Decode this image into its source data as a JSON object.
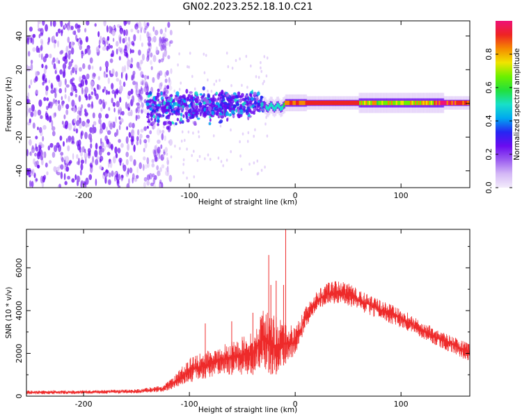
{
  "title": "GN02.2023.252.18.10.C21",
  "chart_data": [
    {
      "type": "heatmap",
      "name": "spectrogram",
      "xlabel": "Height of straight line (km)",
      "ylabel": "Frequency (Hz)",
      "xlim": [
        -254,
        165
      ],
      "ylim": [
        -50,
        49
      ],
      "xticks": [
        -200,
        -100,
        0,
        100
      ],
      "xtick_labels": [
        "-200",
        "-100",
        "0",
        "100"
      ],
      "yticks": [
        -40,
        -20,
        0,
        20,
        40
      ],
      "ytick_labels": [
        "-40",
        "-20",
        "0",
        "20",
        "40"
      ],
      "colorbar": {
        "label": "Normalized spectral amplitude",
        "range": [
          0,
          1
        ],
        "ticks": [
          0.0,
          0.2,
          0.4,
          0.6,
          0.8
        ],
        "tick_labels": [
          "0.0",
          "0.2",
          "0.4",
          "0.6",
          "0.8"
        ],
        "colors": [
          "#f3ecfb",
          "#d4b8f6",
          "#9b5cf0",
          "#6a0bf0",
          "#2626f2",
          "#00a8f0",
          "#18e0c8",
          "#22e03c",
          "#6cf000",
          "#f0e400",
          "#f58a00",
          "#ee2323",
          "#ee1177"
        ]
      },
      "regions": [
        {
          "x_range": [
            -254,
            -125
          ],
          "freq_range": [
            -50,
            49
          ],
          "amplitude": 0.1,
          "description": "noise"
        },
        {
          "x_range": [
            -140,
            -30
          ],
          "freq_center": -3,
          "freq_spread": 8,
          "amplitude": 0.35
        },
        {
          "x_range": [
            -30,
            -10
          ],
          "freq_center": -2,
          "freq_spread": 2,
          "amplitude": 0.5
        },
        {
          "x_range": [
            -10,
            165
          ],
          "freq_center": 0.5,
          "freq_spread": 1.5,
          "amplitude": 0.95
        }
      ]
    },
    {
      "type": "line",
      "name": "snr",
      "xlabel": "Height of straight line (km)",
      "ylabel": "SNR (10 * v/v)",
      "xlim": [
        -254,
        165
      ],
      "ylim": [
        0,
        7800
      ],
      "xticks": [
        -200,
        -100,
        0,
        100
      ],
      "xtick_labels": [
        "-200",
        "-100",
        "0",
        "100"
      ],
      "yticks": [
        0,
        2000,
        4000,
        6000
      ],
      "ytick_labels": [
        "0",
        "2000",
        "4000",
        "6000"
      ],
      "color": "#ee2a2a",
      "envelope_x": [
        -254,
        -200,
        -150,
        -125,
        -115,
        -100,
        -80,
        -60,
        -40,
        -30,
        -20,
        -10,
        0,
        10,
        20,
        30,
        40,
        50,
        60,
        80,
        100,
        120,
        140,
        165
      ],
      "envelope_lo": [
        80,
        100,
        130,
        200,
        350,
        600,
        900,
        1000,
        1000,
        1300,
        900,
        1500,
        1800,
        3200,
        4000,
        4300,
        4300,
        4200,
        4000,
        3600,
        3200,
        2700,
        2200,
        1600
      ],
      "envelope_hi": [
        260,
        280,
        320,
        500,
        900,
        1800,
        2200,
        2600,
        3000,
        4200,
        3800,
        3500,
        3200,
        4200,
        4900,
        5300,
        5400,
        5300,
        5000,
        4500,
        4100,
        3500,
        3000,
        2500
      ],
      "spikes": [
        {
          "x": -25,
          "y": 6600
        },
        {
          "x": -23,
          "y": 5200
        },
        {
          "x": -18,
          "y": 5400
        },
        {
          "x": -9,
          "y": 7800
        },
        {
          "x": -11,
          "y": 5200
        },
        {
          "x": -85,
          "y": 3400
        },
        {
          "x": -60,
          "y": 3500
        },
        {
          "x": -40,
          "y": 3900
        }
      ]
    }
  ]
}
